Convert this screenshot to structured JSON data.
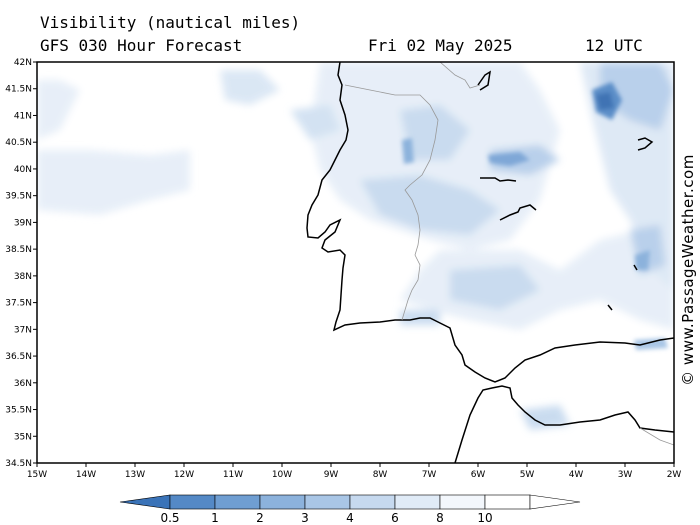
{
  "header": {
    "title": "Visibility (nautical miles)",
    "subtitle": "GFS 030 Hour Forecast",
    "date": "Fri 02 May 2025",
    "time": "12 UTC"
  },
  "credit": "© www.PassageWeather.com",
  "map": {
    "lon_labels": [
      "15W",
      "14W",
      "13W",
      "12W",
      "11W",
      "10W",
      "9W",
      "8W",
      "7W",
      "6W",
      "5W",
      "4W",
      "3W",
      "2W"
    ],
    "lat_labels": [
      "42N",
      "41.5N",
      "41N",
      "40.5N",
      "40N",
      "39.5N",
      "39N",
      "38.5N",
      "38N",
      "37.5N",
      "37N",
      "36.5N",
      "36N",
      "35.5N",
      "35N",
      "34.5N"
    ],
    "lon_range": [
      -15,
      -2
    ],
    "lat_range": [
      34.5,
      42
    ]
  },
  "legend": {
    "values": [
      "0.5",
      "1",
      "2",
      "3",
      "4",
      "6",
      "8",
      "10"
    ],
    "colors": [
      "#3a73b8",
      "#5489c6",
      "#6f9ed2",
      "#8cb2dc",
      "#a9c6e6",
      "#c6d9ef",
      "#e0ebf7",
      "#f3f7fc",
      "#ffffff"
    ]
  }
}
